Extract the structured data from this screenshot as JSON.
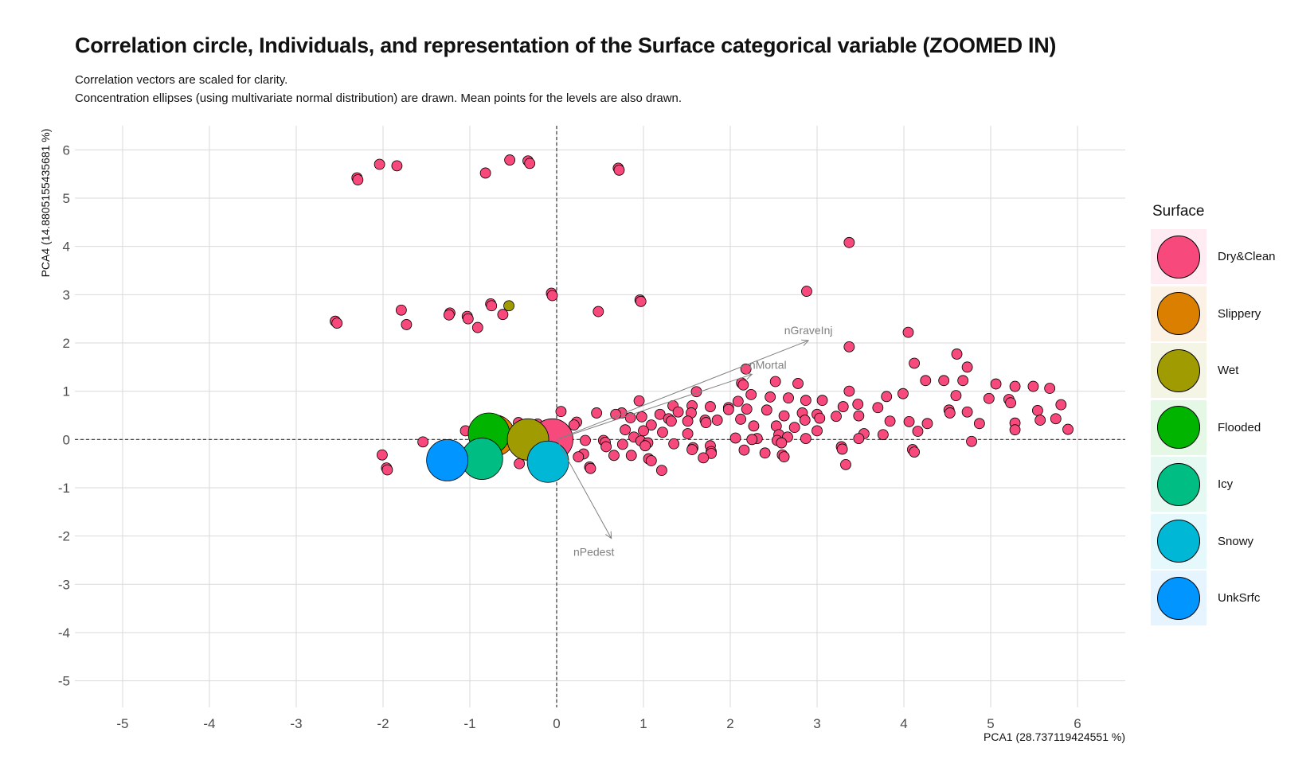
{
  "title": "Correlation circle, Individuals, and representation of the Surface categorical variable (ZOOMED IN)",
  "subtitle_lines": [
    "Correlation vectors are scaled for clarity.",
    "Concentration ellipses (using multivariate normal distribution) are drawn. Mean points for the levels are also drawn."
  ],
  "chart_data": {
    "type": "scatter",
    "xlabel": "PCA1 (28.737119424551 %)",
    "ylabel": "PCA4 (14.8805155435681 %)",
    "xlim": [
      -5.55,
      6.55
    ],
    "ylim": [
      -5.55,
      6.5
    ],
    "x_ticks": [
      -5,
      -4,
      -3,
      -2,
      -1,
      0,
      1,
      2,
      3,
      4,
      5,
      6
    ],
    "y_ticks": [
      -5,
      -4,
      -3,
      -2,
      -1,
      0,
      1,
      2,
      3,
      4,
      5,
      6
    ],
    "grid": true,
    "reference_lines": {
      "x": 0,
      "y": 0,
      "style": "dashed"
    },
    "legend_title": "Surface",
    "legend_position": "right",
    "legend": [
      {
        "level": "Dry&Clean",
        "color": "#F8497D"
      },
      {
        "level": "Slippery",
        "color": "#DB7F00"
      },
      {
        "level": "Wet",
        "color": "#A09B00"
      },
      {
        "level": "Flooded",
        "color": "#00B400"
      },
      {
        "level": "Icy",
        "color": "#00BE83"
      },
      {
        "level": "Snowy",
        "color": "#00B8D6"
      },
      {
        "level": "UnkSrfc",
        "color": "#0095FF"
      }
    ],
    "vectors": [
      {
        "name": "nGraveInj",
        "x": 2.9,
        "y": 2.05
      },
      {
        "name": "nMortal",
        "x": 2.25,
        "y": 1.35
      },
      {
        "name": "nPedest",
        "x": 0.63,
        "y": -2.05
      }
    ],
    "mean_points": [
      {
        "level": "Dry&Clean",
        "x": -0.05,
        "y": 0.0
      },
      {
        "level": "Slippery",
        "x": -0.72,
        "y": 0.08
      },
      {
        "level": "Flooded",
        "x": -0.78,
        "y": 0.12
      },
      {
        "level": "Wet",
        "x": -0.33,
        "y": 0.0
      },
      {
        "level": "Icy",
        "x": -0.86,
        "y": -0.4
      },
      {
        "level": "Snowy",
        "x": -0.1,
        "y": -0.46
      },
      {
        "level": "UnkSrfc",
        "x": -1.26,
        "y": -0.43
      }
    ],
    "points": [
      {
        "level": "Dry&Clean",
        "x": -2.3,
        "y": 5.42
      },
      {
        "level": "Dry&Clean",
        "x": -2.29,
        "y": 5.38
      },
      {
        "level": "Dry&Clean",
        "x": -2.04,
        "y": 5.7
      },
      {
        "level": "Dry&Clean",
        "x": -1.84,
        "y": 5.67
      },
      {
        "level": "Dry&Clean",
        "x": -0.82,
        "y": 5.52
      },
      {
        "level": "Dry&Clean",
        "x": -0.54,
        "y": 5.79
      },
      {
        "level": "Dry&Clean",
        "x": -0.33,
        "y": 5.77
      },
      {
        "level": "Dry&Clean",
        "x": -0.31,
        "y": 5.72
      },
      {
        "level": "Dry&Clean",
        "x": 0.71,
        "y": 5.62
      },
      {
        "level": "Dry&Clean",
        "x": 0.72,
        "y": 5.58
      },
      {
        "level": "Dry&Clean",
        "x": 3.37,
        "y": 4.08
      },
      {
        "level": "Dry&Clean",
        "x": 2.88,
        "y": 3.07
      },
      {
        "level": "Dry&Clean",
        "x": -0.06,
        "y": 3.03
      },
      {
        "level": "Dry&Clean",
        "x": -0.05,
        "y": 2.98
      },
      {
        "level": "Dry&Clean",
        "x": 0.96,
        "y": 2.89
      },
      {
        "level": "Dry&Clean",
        "x": 0.97,
        "y": 2.86
      },
      {
        "level": "Dry&Clean",
        "x": -0.76,
        "y": 2.81
      },
      {
        "level": "Dry&Clean",
        "x": -0.75,
        "y": 2.77
      },
      {
        "level": "Wet",
        "x": -0.55,
        "y": 2.77
      },
      {
        "level": "Dry&Clean",
        "x": -1.79,
        "y": 2.68
      },
      {
        "level": "Dry&Clean",
        "x": 0.48,
        "y": 2.65
      },
      {
        "level": "Dry&Clean",
        "x": -1.23,
        "y": 2.62
      },
      {
        "level": "Dry&Clean",
        "x": -1.24,
        "y": 2.58
      },
      {
        "level": "Dry&Clean",
        "x": -0.62,
        "y": 2.59
      },
      {
        "level": "Dry&Clean",
        "x": -1.03,
        "y": 2.55
      },
      {
        "level": "Dry&Clean",
        "x": -1.02,
        "y": 2.5
      },
      {
        "level": "Dry&Clean",
        "x": -2.55,
        "y": 2.45
      },
      {
        "level": "Dry&Clean",
        "x": -2.53,
        "y": 2.41
      },
      {
        "level": "Dry&Clean",
        "x": -1.73,
        "y": 2.38
      },
      {
        "level": "Dry&Clean",
        "x": -0.91,
        "y": 2.32
      },
      {
        "level": "Dry&Clean",
        "x": 4.05,
        "y": 2.22
      },
      {
        "level": "Dry&Clean",
        "x": 3.37,
        "y": 1.92
      },
      {
        "level": "Dry&Clean",
        "x": 4.61,
        "y": 1.77
      },
      {
        "level": "Dry&Clean",
        "x": 4.12,
        "y": 1.58
      },
      {
        "level": "Dry&Clean",
        "x": 4.73,
        "y": 1.5
      },
      {
        "level": "Dry&Clean",
        "x": 2.18,
        "y": 1.46
      },
      {
        "level": "Dry&Clean",
        "x": 4.25,
        "y": 1.22
      },
      {
        "level": "Dry&Clean",
        "x": 4.46,
        "y": 1.22
      },
      {
        "level": "Dry&Clean",
        "x": 4.68,
        "y": 1.22
      },
      {
        "level": "Dry&Clean",
        "x": 2.13,
        "y": 1.17
      },
      {
        "level": "Dry&Clean",
        "x": 2.15,
        "y": 1.13
      },
      {
        "level": "Dry&Clean",
        "x": 2.52,
        "y": 1.2
      },
      {
        "level": "Dry&Clean",
        "x": 2.78,
        "y": 1.16
      },
      {
        "level": "Dry&Clean",
        "x": 5.06,
        "y": 1.15
      },
      {
        "level": "Dry&Clean",
        "x": 5.28,
        "y": 1.1
      },
      {
        "level": "Dry&Clean",
        "x": 5.49,
        "y": 1.1
      },
      {
        "level": "Dry&Clean",
        "x": 5.68,
        "y": 1.06
      },
      {
        "level": "Dry&Clean",
        "x": 3.37,
        "y": 1.0
      },
      {
        "level": "Dry&Clean",
        "x": 1.61,
        "y": 0.99
      },
      {
        "level": "Dry&Clean",
        "x": 3.99,
        "y": 0.95
      },
      {
        "level": "Dry&Clean",
        "x": 2.24,
        "y": 0.93
      },
      {
        "level": "Dry&Clean",
        "x": 4.6,
        "y": 0.91
      },
      {
        "level": "Dry&Clean",
        "x": 3.8,
        "y": 0.89
      },
      {
        "level": "Dry&Clean",
        "x": 2.46,
        "y": 0.88
      },
      {
        "level": "Dry&Clean",
        "x": 2.67,
        "y": 0.86
      },
      {
        "level": "Dry&Clean",
        "x": 4.98,
        "y": 0.85
      },
      {
        "level": "Dry&Clean",
        "x": 5.21,
        "y": 0.83
      },
      {
        "level": "Dry&Clean",
        "x": 2.87,
        "y": 0.81
      },
      {
        "level": "Dry&Clean",
        "x": 3.06,
        "y": 0.81
      },
      {
        "level": "Dry&Clean",
        "x": 0.95,
        "y": 0.8
      },
      {
        "level": "Dry&Clean",
        "x": 2.09,
        "y": 0.79
      },
      {
        "level": "Dry&Clean",
        "x": 5.23,
        "y": 0.76
      },
      {
        "level": "Dry&Clean",
        "x": 3.47,
        "y": 0.73
      },
      {
        "level": "Dry&Clean",
        "x": 5.81,
        "y": 0.72
      },
      {
        "level": "Dry&Clean",
        "x": 1.34,
        "y": 0.7
      },
      {
        "level": "Dry&Clean",
        "x": 1.56,
        "y": 0.7
      },
      {
        "level": "Dry&Clean",
        "x": 1.77,
        "y": 0.68
      },
      {
        "level": "Dry&Clean",
        "x": 3.3,
        "y": 0.68
      },
      {
        "level": "Dry&Clean",
        "x": 1.98,
        "y": 0.66
      },
      {
        "level": "Dry&Clean",
        "x": 3.7,
        "y": 0.66
      },
      {
        "level": "Dry&Clean",
        "x": 2.19,
        "y": 0.63
      },
      {
        "level": "Dry&Clean",
        "x": 1.98,
        "y": 0.62
      },
      {
        "level": "Dry&Clean",
        "x": 2.42,
        "y": 0.61
      },
      {
        "level": "Dry&Clean",
        "x": 4.52,
        "y": 0.61
      },
      {
        "level": "Dry&Clean",
        "x": 5.54,
        "y": 0.6
      },
      {
        "level": "Dry&Clean",
        "x": 0.05,
        "y": 0.58
      },
      {
        "level": "Dry&Clean",
        "x": 1.4,
        "y": 0.57
      },
      {
        "level": "Dry&Clean",
        "x": 4.73,
        "y": 0.57
      },
      {
        "level": "Dry&Clean",
        "x": 0.46,
        "y": 0.55
      },
      {
        "level": "Dry&Clean",
        "x": 0.75,
        "y": 0.55
      },
      {
        "level": "Dry&Clean",
        "x": 1.55,
        "y": 0.55
      },
      {
        "level": "Dry&Clean",
        "x": 2.83,
        "y": 0.55
      },
      {
        "level": "Dry&Clean",
        "x": 4.53,
        "y": 0.55
      },
      {
        "level": "Dry&Clean",
        "x": 0.68,
        "y": 0.52
      },
      {
        "level": "Dry&Clean",
        "x": 1.19,
        "y": 0.52
      },
      {
        "level": "Dry&Clean",
        "x": 3.0,
        "y": 0.52
      },
      {
        "level": "Dry&Clean",
        "x": 3.48,
        "y": 0.49
      },
      {
        "level": "Dry&Clean",
        "x": 2.62,
        "y": 0.49
      },
      {
        "level": "Dry&Clean",
        "x": 3.22,
        "y": 0.48
      },
      {
        "level": "Dry&Clean",
        "x": 0.98,
        "y": 0.47
      },
      {
        "level": "Dry&Clean",
        "x": 0.85,
        "y": 0.45
      },
      {
        "level": "Dry&Clean",
        "x": 3.03,
        "y": 0.44
      },
      {
        "level": "Dry&Clean",
        "x": 1.29,
        "y": 0.43
      },
      {
        "level": "Dry&Clean",
        "x": 2.12,
        "y": 0.42
      },
      {
        "level": "Dry&Clean",
        "x": 5.75,
        "y": 0.43
      },
      {
        "level": "Dry&Clean",
        "x": 1.71,
        "y": 0.4
      },
      {
        "level": "Dry&Clean",
        "x": 1.85,
        "y": 0.4
      },
      {
        "level": "Dry&Clean",
        "x": 2.86,
        "y": 0.4
      },
      {
        "level": "Dry&Clean",
        "x": 5.57,
        "y": 0.4
      },
      {
        "level": "Dry&Clean",
        "x": 1.51,
        "y": 0.38
      },
      {
        "level": "Dry&Clean",
        "x": 1.32,
        "y": 0.38
      },
      {
        "level": "Dry&Clean",
        "x": 4.06,
        "y": 0.37
      },
      {
        "level": "Dry&Clean",
        "x": 3.84,
        "y": 0.38
      },
      {
        "level": "Dry&Clean",
        "x": 0.23,
        "y": 0.36
      },
      {
        "level": "Dry&Clean",
        "x": 1.72,
        "y": 0.35
      },
      {
        "level": "Dry&Clean",
        "x": 4.27,
        "y": 0.33
      },
      {
        "level": "Dry&Clean",
        "x": 4.87,
        "y": 0.33
      },
      {
        "level": "Dry&Clean",
        "x": 5.28,
        "y": 0.34
      },
      {
        "level": "Dry&Clean",
        "x": 0.2,
        "y": 0.3
      },
      {
        "level": "Dry&Clean",
        "x": 1.09,
        "y": 0.3
      },
      {
        "level": "Dry&Clean",
        "x": 2.27,
        "y": 0.28
      },
      {
        "level": "Dry&Clean",
        "x": 2.53,
        "y": 0.28
      },
      {
        "level": "Dry&Clean",
        "x": 2.74,
        "y": 0.25
      },
      {
        "level": "Dry&Clean",
        "x": 0.79,
        "y": 0.2
      },
      {
        "level": "Dry&Clean",
        "x": 1.0,
        "y": 0.18
      },
      {
        "level": "Dry&Clean",
        "x": 3.0,
        "y": 0.18
      },
      {
        "level": "Dry&Clean",
        "x": 4.16,
        "y": 0.17
      },
      {
        "level": "Dry&Clean",
        "x": 5.89,
        "y": 0.21
      },
      {
        "level": "Dry&Clean",
        "x": 5.28,
        "y": 0.2
      },
      {
        "level": "Dry&Clean",
        "x": -1.05,
        "y": 0.18
      },
      {
        "level": "Dry&Clean",
        "x": 1.22,
        "y": 0.15
      },
      {
        "level": "Dry&Clean",
        "x": 1.51,
        "y": 0.12
      },
      {
        "level": "Dry&Clean",
        "x": 3.54,
        "y": 0.12
      },
      {
        "level": "Dry&Clean",
        "x": 2.56,
        "y": 0.1
      },
      {
        "level": "Dry&Clean",
        "x": 3.76,
        "y": 0.1
      },
      {
        "level": "Dry&Clean",
        "x": 0.89,
        "y": 0.05
      },
      {
        "level": "Dry&Clean",
        "x": 2.66,
        "y": 0.05
      },
      {
        "level": "Dry&Clean",
        "x": 2.06,
        "y": 0.03
      },
      {
        "level": "Dry&Clean",
        "x": 2.87,
        "y": 0.02
      },
      {
        "level": "Dry&Clean",
        "x": 2.31,
        "y": 0.02
      },
      {
        "level": "Dry&Clean",
        "x": 3.48,
        "y": 0.02
      },
      {
        "level": "Dry&Clean",
        "x": 2.25,
        "y": 0.0
      },
      {
        "level": "Dry&Clean",
        "x": 0.33,
        "y": -0.02
      },
      {
        "level": "Dry&Clean",
        "x": 0.54,
        "y": -0.02
      },
      {
        "level": "Dry&Clean",
        "x": 2.54,
        "y": -0.02
      },
      {
        "level": "Dry&Clean",
        "x": 4.78,
        "y": -0.04
      },
      {
        "level": "Dry&Clean",
        "x": 0.97,
        "y": -0.03
      },
      {
        "level": "Dry&Clean",
        "x": 0.56,
        "y": -0.06
      },
      {
        "level": "Dry&Clean",
        "x": 2.59,
        "y": -0.07
      },
      {
        "level": "Dry&Clean",
        "x": -1.54,
        "y": -0.05
      },
      {
        "level": "Dry&Clean",
        "x": 1.05,
        "y": -0.07
      },
      {
        "level": "Dry&Clean",
        "x": 0.76,
        "y": -0.1
      },
      {
        "level": "Dry&Clean",
        "x": 1.35,
        "y": -0.09
      },
      {
        "level": "Dry&Clean",
        "x": 1.02,
        "y": -0.13
      },
      {
        "level": "Dry&Clean",
        "x": 1.77,
        "y": -0.13
      },
      {
        "level": "Dry&Clean",
        "x": 3.28,
        "y": -0.15
      },
      {
        "level": "Dry&Clean",
        "x": 0.57,
        "y": -0.15
      },
      {
        "level": "Dry&Clean",
        "x": 1.57,
        "y": -0.17
      },
      {
        "level": "Dry&Clean",
        "x": 3.29,
        "y": -0.2
      },
      {
        "level": "Dry&Clean",
        "x": 1.56,
        "y": -0.21
      },
      {
        "level": "Dry&Clean",
        "x": 2.16,
        "y": -0.22
      },
      {
        "level": "Dry&Clean",
        "x": 4.1,
        "y": -0.21
      },
      {
        "level": "Dry&Clean",
        "x": 4.12,
        "y": -0.26
      },
      {
        "level": "Dry&Clean",
        "x": 1.78,
        "y": -0.25
      },
      {
        "level": "Dry&Clean",
        "x": 1.78,
        "y": -0.29
      },
      {
        "level": "Dry&Clean",
        "x": 2.4,
        "y": -0.28
      },
      {
        "level": "Dry&Clean",
        "x": 0.31,
        "y": -0.3
      },
      {
        "level": "Dry&Clean",
        "x": 0.66,
        "y": -0.33
      },
      {
        "level": "Dry&Clean",
        "x": 0.86,
        "y": -0.33
      },
      {
        "level": "Dry&Clean",
        "x": 2.6,
        "y": -0.32
      },
      {
        "level": "Dry&Clean",
        "x": 2.62,
        "y": -0.36
      },
      {
        "level": "Dry&Clean",
        "x": 0.25,
        "y": -0.36
      },
      {
        "level": "Dry&Clean",
        "x": -2.01,
        "y": -0.32
      },
      {
        "level": "Dry&Clean",
        "x": 1.69,
        "y": -0.38
      },
      {
        "level": "Dry&Clean",
        "x": 1.06,
        "y": -0.4
      },
      {
        "level": "Dry&Clean",
        "x": 1.09,
        "y": -0.44
      },
      {
        "level": "Dry&Clean",
        "x": -0.43,
        "y": -0.5
      },
      {
        "level": "Dry&Clean",
        "x": 3.33,
        "y": -0.52
      },
      {
        "level": "Dry&Clean",
        "x": 0.38,
        "y": -0.57
      },
      {
        "level": "Dry&Clean",
        "x": 0.39,
        "y": -0.6
      },
      {
        "level": "Dry&Clean",
        "x": -1.96,
        "y": -0.59
      },
      {
        "level": "Dry&Clean",
        "x": -1.95,
        "y": -0.63
      },
      {
        "level": "Dry&Clean",
        "x": 1.21,
        "y": -0.64
      },
      {
        "level": "Dry&Clean",
        "x": -0.44,
        "y": 0.35
      },
      {
        "level": "Dry&Clean",
        "x": -0.22,
        "y": 0.32
      },
      {
        "level": "Dry&Clean",
        "x": -0.61,
        "y": 0.28
      },
      {
        "level": "Dry&Clean",
        "x": -0.18,
        "y": -0.25
      }
    ]
  }
}
